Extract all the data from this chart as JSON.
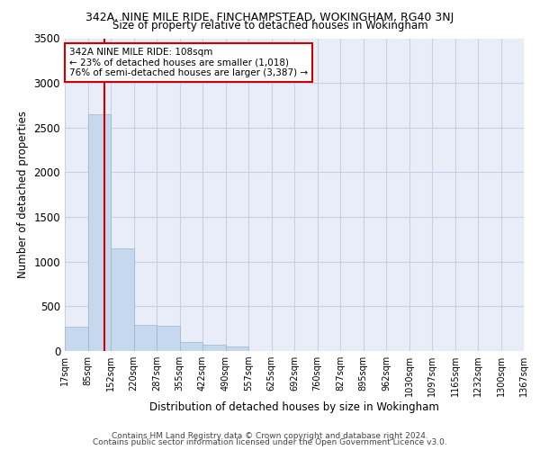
{
  "title": "342A, NINE MILE RIDE, FINCHAMPSTEAD, WOKINGHAM, RG40 3NJ",
  "subtitle": "Size of property relative to detached houses in Wokingham",
  "xlabel": "Distribution of detached houses by size in Wokingham",
  "ylabel": "Number of detached properties",
  "footer1": "Contains HM Land Registry data © Crown copyright and database right 2024.",
  "footer2": "Contains public sector information licensed under the Open Government Licence v3.0.",
  "bin_labels": [
    "17sqm",
    "85sqm",
    "152sqm",
    "220sqm",
    "287sqm",
    "355sqm",
    "422sqm",
    "490sqm",
    "557sqm",
    "625sqm",
    "692sqm",
    "760sqm",
    "827sqm",
    "895sqm",
    "962sqm",
    "1030sqm",
    "1097sqm",
    "1165sqm",
    "1232sqm",
    "1300sqm",
    "1367sqm"
  ],
  "bar_values": [
    270,
    2650,
    1150,
    290,
    280,
    100,
    70,
    50,
    0,
    0,
    0,
    0,
    0,
    0,
    0,
    0,
    0,
    0,
    0,
    0
  ],
  "bar_color": "#c5d8ed",
  "bar_edge_color": "#9ab5d0",
  "grid_color": "#c8d0e8",
  "bg_color": "#e8edf8",
  "red_line_x": 1.23,
  "annotation_line1": "342A NINE MILE RIDE: 108sqm",
  "annotation_line2": "← 23% of detached houses are smaller (1,018)",
  "annotation_line3": "76% of semi-detached houses are larger (3,387) →",
  "annotation_box_color": "#ffffff",
  "annotation_border_color": "#cc0000",
  "ylim": [
    0,
    3500
  ],
  "yticks": [
    0,
    500,
    1000,
    1500,
    2000,
    2500,
    3000,
    3500
  ]
}
